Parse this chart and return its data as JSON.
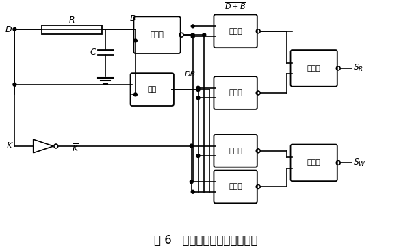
{
  "title": "图 6   双向恒压控制的驱动电路",
  "title_fontsize": 12,
  "bg_color": "#ffffff",
  "line_color": "#000000",
  "text_color": "#000000",
  "gate_labels": {
    "nor": "或非门",
    "and": "与门",
    "nand": "与非门"
  },
  "label_D": "D",
  "label_R": "R",
  "label_B": "B",
  "label_C": "C",
  "label_K": "K",
  "label_Kbar": "$\\overline{K}$",
  "label_DB_sig": "DB",
  "label_SR": "$S_R$",
  "label_SW": "$S_W$"
}
